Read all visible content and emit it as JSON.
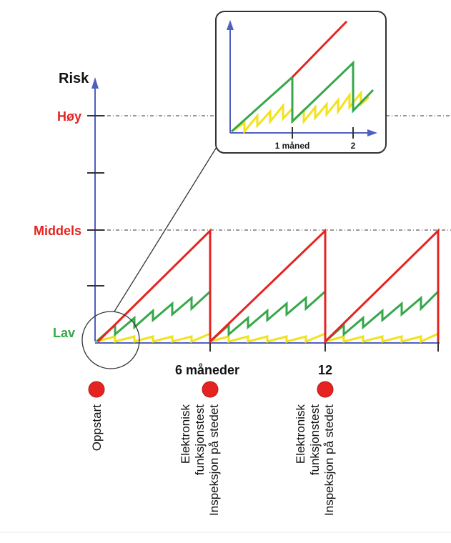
{
  "colors": {
    "axis": "#4f5fc0",
    "high_risk": "#e52421",
    "medium_line": "#34a84a",
    "low_line": "#f2e21e",
    "text": "#1a1a1a",
    "marker": "#e52421",
    "dashed": "#333333"
  },
  "y_axis": {
    "title": "Risk",
    "levels": {
      "high": "Høy",
      "medium": "Middels",
      "low": "Lav"
    }
  },
  "x_axis": {
    "tick_6": "6 måneder",
    "tick_12": "12"
  },
  "inset": {
    "tick_1": "1 måned",
    "tick_2": "2"
  },
  "events": {
    "startup": "Oppstart",
    "test_6": {
      "line1": "Elektronisk",
      "line2": "funksjonstest",
      "line3": "Inspeksjon på stedet"
    },
    "test_12": {
      "line1": "Elektronisk",
      "line2": "funksjonstest",
      "line3": "Inspeksjon på stedet"
    }
  }
}
